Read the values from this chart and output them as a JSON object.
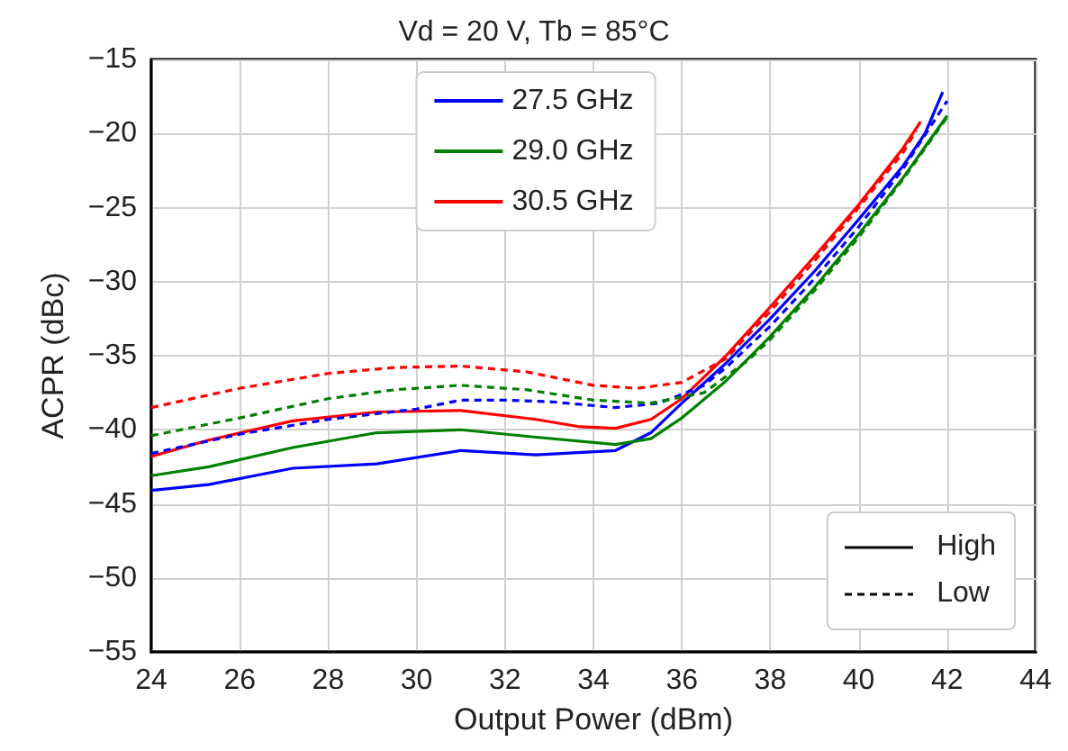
{
  "chart_data": {
    "type": "line",
    "title": "Vd = 20 V, Tb = 85°C",
    "xlabel": "Output Power (dBm)",
    "ylabel": "ACPR (dBc)",
    "xlim": [
      24,
      44
    ],
    "xticks": [
      24,
      26,
      28,
      30,
      32,
      34,
      36,
      38,
      40,
      42,
      44
    ],
    "ylim": [
      -55,
      -15
    ],
    "yticks": [
      -55,
      -50,
      -45,
      -40,
      -35,
      -30,
      -25,
      -20,
      -15
    ],
    "grid": true,
    "legend": "top",
    "marker": "none",
    "annotations": [
      "High",
      "Low"
    ],
    "series": [
      {
        "name": "27.5 GHz",
        "color": "#0000ff",
        "line_style": "solid",
        "x": [
          24,
          25.3,
          27.2,
          29.1,
          31,
          32.7,
          34.5,
          35.3,
          36,
          37,
          38,
          39,
          40,
          41,
          41.5,
          41.9
        ],
        "values": [
          -44.1,
          -43.7,
          -42.6,
          -42.3,
          -41.4,
          -41.7,
          -41.4,
          -40.2,
          -38.2,
          -35.5,
          -32.5,
          -29.3,
          -25.8,
          -22.2,
          -20,
          -17.2
        ]
      },
      {
        "name": "29.0 GHz",
        "color": "#008000",
        "line_style": "solid",
        "x": [
          24,
          25.3,
          27.2,
          29.1,
          31,
          32.7,
          34.5,
          35.3,
          36,
          37,
          38,
          39,
          40,
          41,
          42
        ],
        "values": [
          -43.1,
          -42.5,
          -41.2,
          -40.2,
          -40,
          -40.5,
          -41,
          -40.6,
          -39.2,
          -36.7,
          -33.7,
          -30.4,
          -26.8,
          -23,
          -18.8
        ]
      },
      {
        "name": "30.5 GHz",
        "color": "#ff0000",
        "line_style": "solid",
        "x": [
          24,
          25.3,
          27.2,
          29.1,
          31,
          32.7,
          33.7,
          34.5,
          35.3,
          36,
          37,
          38,
          39,
          40,
          41,
          41.4
        ],
        "values": [
          -41.8,
          -40.7,
          -39.4,
          -38.8,
          -38.7,
          -39.3,
          -39.8,
          -39.9,
          -39.3,
          -37.9,
          -35,
          -31.7,
          -28.3,
          -24.8,
          -21,
          -19.2
        ]
      },
      {
        "color": "#0000ff",
        "line_style": "dashed",
        "x": [
          24,
          26,
          28,
          30,
          31,
          32,
          33,
          34.5,
          35.5,
          36.5,
          37,
          38,
          39,
          40,
          41,
          42
        ],
        "values": [
          -41.6,
          -40.3,
          -39.3,
          -38.6,
          -38,
          -38,
          -38.1,
          -38.5,
          -38.2,
          -37,
          -35.8,
          -33,
          -29.8,
          -26.3,
          -22.4,
          -17.8
        ]
      },
      {
        "color": "#008000",
        "line_style": "dashed",
        "x": [
          24,
          26,
          28,
          29.5,
          31,
          32.5,
          34,
          35.3,
          36.5,
          37.5,
          38,
          39,
          40,
          41,
          42
        ],
        "values": [
          -40.4,
          -39.2,
          -37.9,
          -37.3,
          -37,
          -37.3,
          -38,
          -38.2,
          -37.5,
          -35.3,
          -33.9,
          -30.6,
          -27,
          -23.1,
          -18.9
        ]
      },
      {
        "color": "#ff0000",
        "line_style": "dashed",
        "x": [
          24,
          26,
          28,
          29.5,
          31,
          32.5,
          34,
          35,
          36,
          37,
          38,
          39,
          40,
          41,
          41.3
        ],
        "values": [
          -38.5,
          -37.2,
          -36.2,
          -35.8,
          -35.7,
          -36.1,
          -37,
          -37.2,
          -36.8,
          -35.2,
          -32,
          -28.6,
          -25,
          -21.3,
          -19.8
        ]
      }
    ]
  }
}
